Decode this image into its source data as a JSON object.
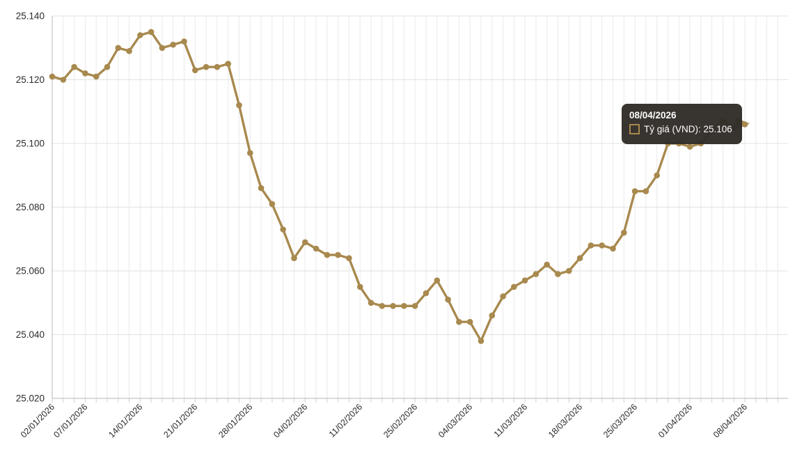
{
  "chart_data": {
    "type": "line",
    "title": "",
    "xlabel": "",
    "ylabel": "",
    "grid": true,
    "legend_position": "none",
    "series": [
      {
        "name": "Tỷ giá (VND)",
        "color": "#a8894e",
        "values": [
          25121,
          25120,
          25124,
          25122,
          25121,
          25124,
          25130,
          25129,
          25134,
          25135,
          25130,
          25131,
          25132,
          25123,
          25124,
          25124,
          25125,
          25112,
          25097,
          25086,
          25081,
          25073,
          25064,
          25069,
          25067,
          25065,
          25065,
          25064,
          25055,
          25050,
          25049,
          25049,
          25049,
          25049,
          25053,
          25057,
          25051,
          25044,
          25044,
          25038,
          25046,
          25052,
          25055,
          25057,
          25059,
          25062,
          25059,
          25060,
          25064,
          25068,
          25068,
          25067,
          25072,
          25085,
          25085,
          25090,
          25100,
          25100,
          25099,
          25100,
          25104,
          25107,
          25105,
          25106
        ]
      }
    ],
    "x_count": 64,
    "x_tick_labels": [
      "02/01/2026",
      "07/01/2026",
      "14/01/2026",
      "21/01/2026",
      "28/01/2026",
      "04/02/2026",
      "11/02/2026",
      "25/02/2026",
      "04/03/2026",
      "11/03/2026",
      "18/03/2026",
      "25/03/2026",
      "01/04/2026",
      "08/04/2026"
    ],
    "x_tick_indices": [
      0,
      3,
      8,
      13,
      18,
      23,
      28,
      33,
      38,
      43,
      48,
      53,
      58,
      63
    ],
    "y_tick_labels": [
      "25.140",
      "25.120",
      "25.100",
      "25.080",
      "25.060",
      "25.040",
      "25.020"
    ],
    "y_tick_values": [
      25140,
      25120,
      25100,
      25080,
      25060,
      25040,
      25020
    ],
    "y_min": 25020,
    "y_max": 25140
  },
  "tooltip": {
    "date": "08/04/2026",
    "series_label": "Tỷ giá (VND)",
    "value": "25.106",
    "text": "Tỷ giá (VND): 25.106"
  },
  "colors": {
    "line": "#a8894e",
    "grid_vertical": "#e9e9e9",
    "grid_horizontal": "#e2e2e2",
    "axis": "#b9b9b9",
    "tick": "#cfcfcf",
    "label_text": "#2b2b2b",
    "tooltip_bg": "rgba(48,44,40,0.96)",
    "tooltip_text": "#ffffff",
    "background": "#ffffff"
  }
}
